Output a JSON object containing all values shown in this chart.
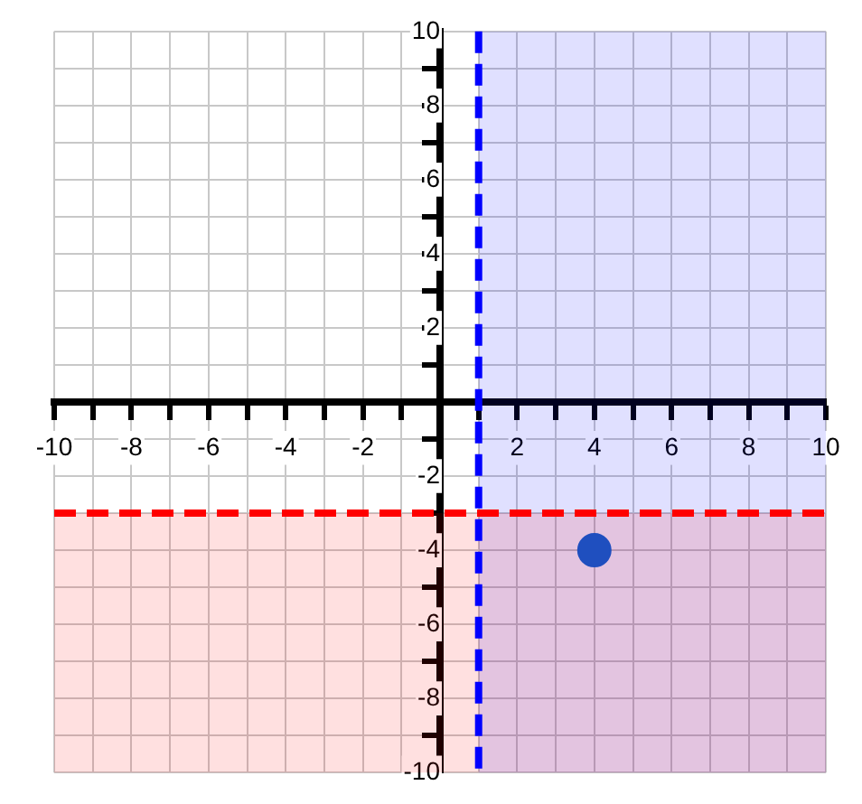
{
  "chart_data": {
    "type": "scatter",
    "x": [
      4
    ],
    "values": [
      -4
    ],
    "color": "#1f4fbf",
    "marker": "circle",
    "xlim": [
      -10,
      10
    ],
    "ylim": [
      -10,
      10
    ],
    "xticks": [
      -10,
      {
        "value": -9,
        "label": null
      },
      -8,
      {
        "value": -7,
        "label": null
      },
      -6,
      {
        "value": -5,
        "label": null
      },
      -4,
      {
        "value": -3,
        "label": null
      },
      -2,
      {
        "value": -1,
        "label": null
      },
      {
        "value": 0,
        "label": null
      },
      {
        "value": 1,
        "label": null
      },
      2,
      {
        "value": 3,
        "label": null
      },
      4,
      {
        "value": 5,
        "label": null
      },
      6,
      {
        "value": 7,
        "label": null
      },
      8,
      {
        "value": 9,
        "label": null
      },
      10
    ],
    "yticks": [
      -10,
      {
        "value": -9,
        "label": null
      },
      -8,
      {
        "value": -7,
        "label": null
      },
      -6,
      {
        "value": -5,
        "label": null
      },
      -4,
      {
        "value": -3,
        "label": null
      },
      -2,
      {
        "value": -1,
        "label": null
      },
      {
        "value": 0,
        "label": null
      },
      {
        "value": 1,
        "label": null
      },
      2,
      {
        "value": 3,
        "label": null
      },
      4,
      {
        "value": 5,
        "label": null
      },
      6,
      {
        "value": 7,
        "label": null
      },
      8,
      {
        "value": 9,
        "label": null
      },
      10
    ],
    "grid": true,
    "ref_lines": [
      {
        "axis": "x",
        "value": 1,
        "color": "#0000ff",
        "line_style": "dashed"
      },
      {
        "axis": "y",
        "value": -3,
        "color": "#ff0000",
        "line_style": "dashed"
      }
    ],
    "bands": [
      {
        "axis": "x",
        "from": 1,
        "to": 10,
        "color": "#0000ff"
      },
      {
        "axis": "y",
        "from": -10,
        "to": -3,
        "color": "#ff0000"
      }
    ]
  }
}
